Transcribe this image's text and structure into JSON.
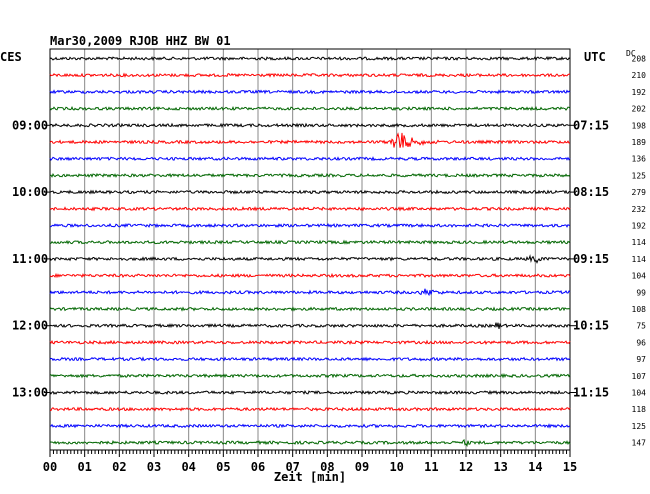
{
  "chart_data": {
    "type": "line",
    "title": "Mar30,2009   RJOB HHZ BW 01",
    "left_timezone": "CES",
    "right_timezone": "UTC",
    "dc_label": "DC",
    "xlabel": "Zeit [min]",
    "xlim": [
      0,
      15
    ],
    "x_ticks": [
      "00",
      "01",
      "02",
      "03",
      "04",
      "05",
      "06",
      "07",
      "08",
      "09",
      "10",
      "11",
      "12",
      "13",
      "14",
      "15"
    ],
    "line_colors": [
      "#000000",
      "#ff0000",
      "#0000ff",
      "#006600"
    ],
    "left_hour_labels": [
      "09:00",
      "10:00",
      "11:00",
      "12:00",
      "13:00"
    ],
    "right_hour_labels": [
      "07:15",
      "08:15",
      "09:15",
      "10:15",
      "11:15"
    ],
    "dc_values": [
      208,
      210,
      192,
      202,
      198,
      189,
      136,
      125,
      279,
      232,
      192,
      114,
      114,
      104,
      99,
      108,
      75,
      96,
      97,
      107,
      104,
      118,
      125,
      147
    ],
    "events": [
      {
        "trace": 5,
        "start_min": 9.8,
        "end_min": 11.2,
        "peak_min": 10.0,
        "amplitude": "large"
      },
      {
        "trace": 14,
        "start_min": 10.6,
        "end_min": 11.4,
        "peak_min": 10.9,
        "amplitude": "small"
      },
      {
        "trace": 12,
        "start_min": 13.7,
        "end_min": 14.3,
        "peak_min": 14.0,
        "amplitude": "small"
      },
      {
        "trace": 16,
        "start_min": 12.8,
        "end_min": 13.0,
        "peak_min": 12.9,
        "amplitude": "small"
      },
      {
        "trace": 23,
        "start_min": 11.9,
        "end_min": 12.1,
        "peak_min": 12.0,
        "amplitude": "small"
      }
    ]
  }
}
